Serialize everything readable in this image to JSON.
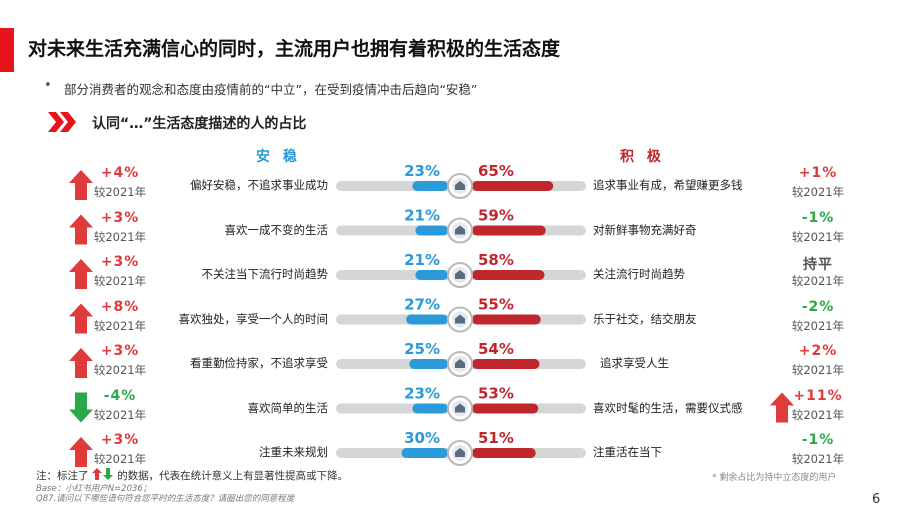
{
  "title": "对未来生活充满信心的同时，主流用户也拥有着积极的生活态度",
  "subtitle": "部分消费者的观念和态度由疫情前的“中立”，在受到疫情冲击后趋向“安稳”",
  "section_title": "认同“…”生活态度描述的人的占比",
  "headers": {
    "stable": "安 稳",
    "positive": "积 极"
  },
  "colors": {
    "accent": "#e8141c",
    "stable": "#2a9ad8",
    "positive": "#c0272d",
    "up": "#e03a3a",
    "down": "#2aa84a",
    "flat": "#555555"
  },
  "chart_data": {
    "type": "bar",
    "categories": [
      "偏好安稳，不追求事业成功 / 追求事业有成，希望赚更多钱",
      "喜欢一成不变的生活 / 对新鲜事物充满好奇",
      "不关注当下流行时尚趋势 / 关注流行时尚趋势",
      "喜欢独处，享受一个人的时间 / 乐于社交，结交朋友",
      "看重勤俭持家，不追求享受 / 追求享受人生",
      "喜欢简单的生活 / 喜欢时髦的生活，需要仪式感",
      "注重未来规划 / 注重活在当下"
    ],
    "series": [
      {
        "name": "安稳",
        "values": [
          23,
          21,
          21,
          27,
          25,
          23,
          30
        ]
      },
      {
        "name": "积极",
        "values": [
          65,
          59,
          58,
          55,
          54,
          53,
          51
        ]
      }
    ],
    "unit": "%"
  },
  "rows": [
    {
      "left_text": "偏好安稳，不追求事业成功",
      "right_text": "追求事业有成，希望赚更多钱",
      "stable_label": "23%",
      "positive_label": "65%",
      "left_change": "+4%",
      "left_dir": "up",
      "right_change": "+1%",
      "right_dir": "up"
    },
    {
      "left_text": "喜欢一成不变的生活",
      "right_text": "对新鲜事物充满好奇",
      "stable_label": "21%",
      "positive_label": "59%",
      "left_change": "+3%",
      "left_dir": "up",
      "right_change": "-1%",
      "right_dir": "down"
    },
    {
      "left_text": "不关注当下流行时尚趋势",
      "right_text": "关注流行时尚趋势",
      "stable_label": "21%",
      "positive_label": "58%",
      "left_change": "+3%",
      "left_dir": "up",
      "right_change": "持平",
      "right_dir": "flat"
    },
    {
      "left_text": "喜欢独处，享受一个人的时间",
      "right_text": "乐于社交，结交朋友",
      "stable_label": "27%",
      "positive_label": "55%",
      "left_change": "+8%",
      "left_dir": "up",
      "right_change": "-2%",
      "right_dir": "down"
    },
    {
      "left_text": "看重勤俭持家，不追求享受",
      "right_text": "追求享受人生",
      "stable_label": "25%",
      "positive_label": "54%",
      "left_change": "+3%",
      "left_dir": "up",
      "right_change": "+2%",
      "right_dir": "up"
    },
    {
      "left_text": "喜欢简单的生活",
      "right_text": "喜欢时髦的生活，需要仪式感",
      "stable_label": "23%",
      "positive_label": "53%",
      "left_change": "-4%",
      "left_dir": "down",
      "right_change": "+11%",
      "right_dir": "up"
    },
    {
      "left_text": "注重未来规划",
      "right_text": "注重活在当下",
      "stable_label": "30%",
      "positive_label": "51%",
      "left_change": "+3%",
      "left_dir": "up",
      "right_change": "-1%",
      "right_dir": "down"
    }
  ],
  "compare_label": "较2021年",
  "footnote": {
    "note_prefix": "注：标注了",
    "note_suffix": "的数据，代表在统计意义上有显著性提高或下降。",
    "base": "Base：小红书用户N=2036；",
    "question": "Q87.请问以下哪些语句符合您平时的生活态度？请圈出您的同意程度"
  },
  "neutral_note": "* 剩余占比为持中立态度的用户",
  "page_number": "6"
}
